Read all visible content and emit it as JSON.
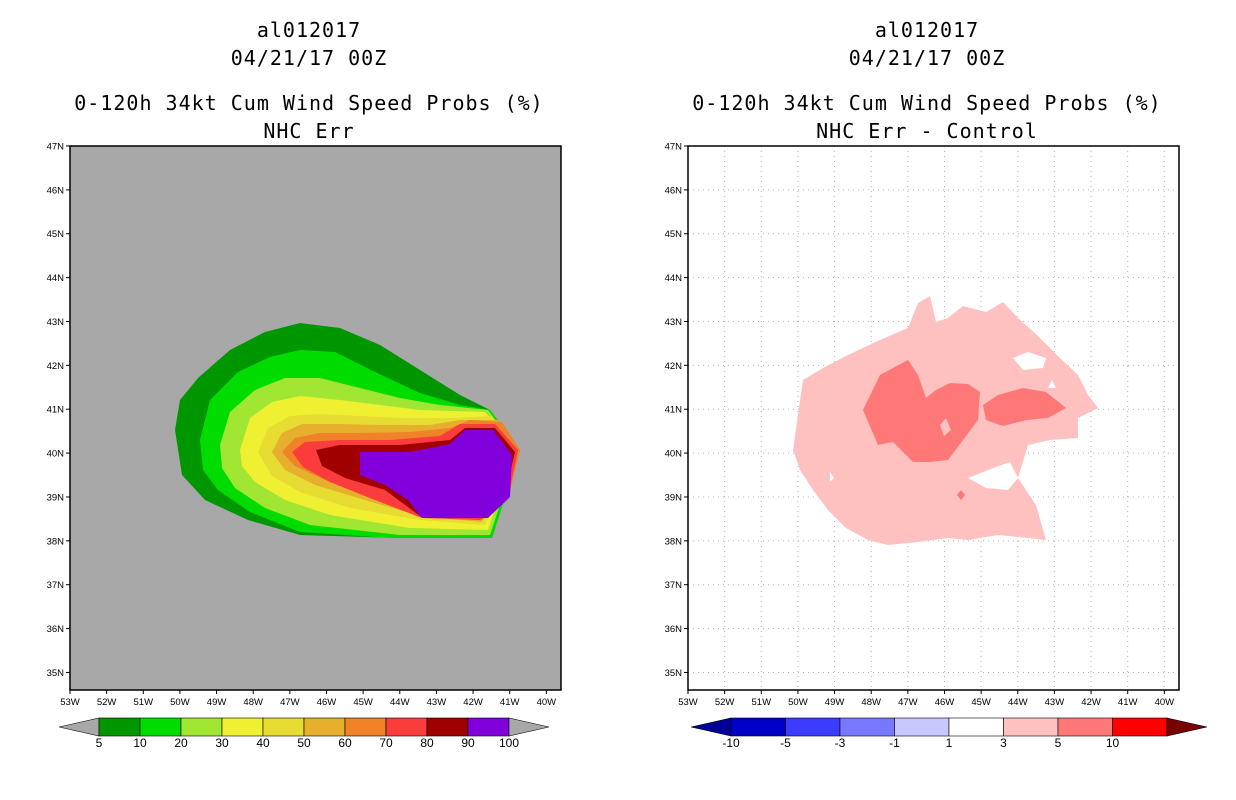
{
  "panels": [
    {
      "storm": "al012017",
      "date": "04/21/17 00Z",
      "title": "0-120h 34kt Cum Wind Speed Probs (%)",
      "subtitle": "NHC Err",
      "colorbar": {
        "labels": [
          "5",
          "10",
          "20",
          "30",
          "40",
          "50",
          "60",
          "70",
          "80",
          "90",
          "100"
        ],
        "colors": [
          "#009600",
          "#00dc00",
          "#a0e632",
          "#f0f032",
          "#e6dc32",
          "#e6af2d",
          "#f08228",
          "#fa3c3c",
          "#a00000",
          "#8200dc"
        ],
        "under_color": "#a8a8a8",
        "over_color": "#a8a8a8"
      }
    },
    {
      "storm": "al012017",
      "date": "04/21/17 00Z",
      "title": "0-120h 34kt Cum Wind Speed Probs (%)",
      "subtitle": "NHC Err - Control",
      "colorbar": {
        "labels": [
          "-10",
          "-5",
          "-3",
          "-1",
          "1",
          "3",
          "5",
          "10"
        ],
        "colors": [
          "#0000c8",
          "#3c3cff",
          "#7878ff",
          "#c8c8ff",
          "#ffffff",
          "#ffc0c0",
          "#ff7878",
          "#ff0000"
        ],
        "under_color": "#000096",
        "over_color": "#780000"
      }
    }
  ],
  "axes": {
    "lat_labels": [
      "47N",
      "46N",
      "45N",
      "44N",
      "43N",
      "42N",
      "41N",
      "40N",
      "39N",
      "38N",
      "37N",
      "36N",
      "35N"
    ],
    "lon_labels": [
      "53W",
      "52W",
      "51W",
      "50W",
      "49W",
      "48W",
      "47W",
      "46W",
      "45W",
      "44W",
      "43W",
      "42W",
      "41W",
      "40W"
    ]
  },
  "map_colors": {
    "land_background": "#a8a8a8",
    "grid": "#b4b4b4"
  }
}
